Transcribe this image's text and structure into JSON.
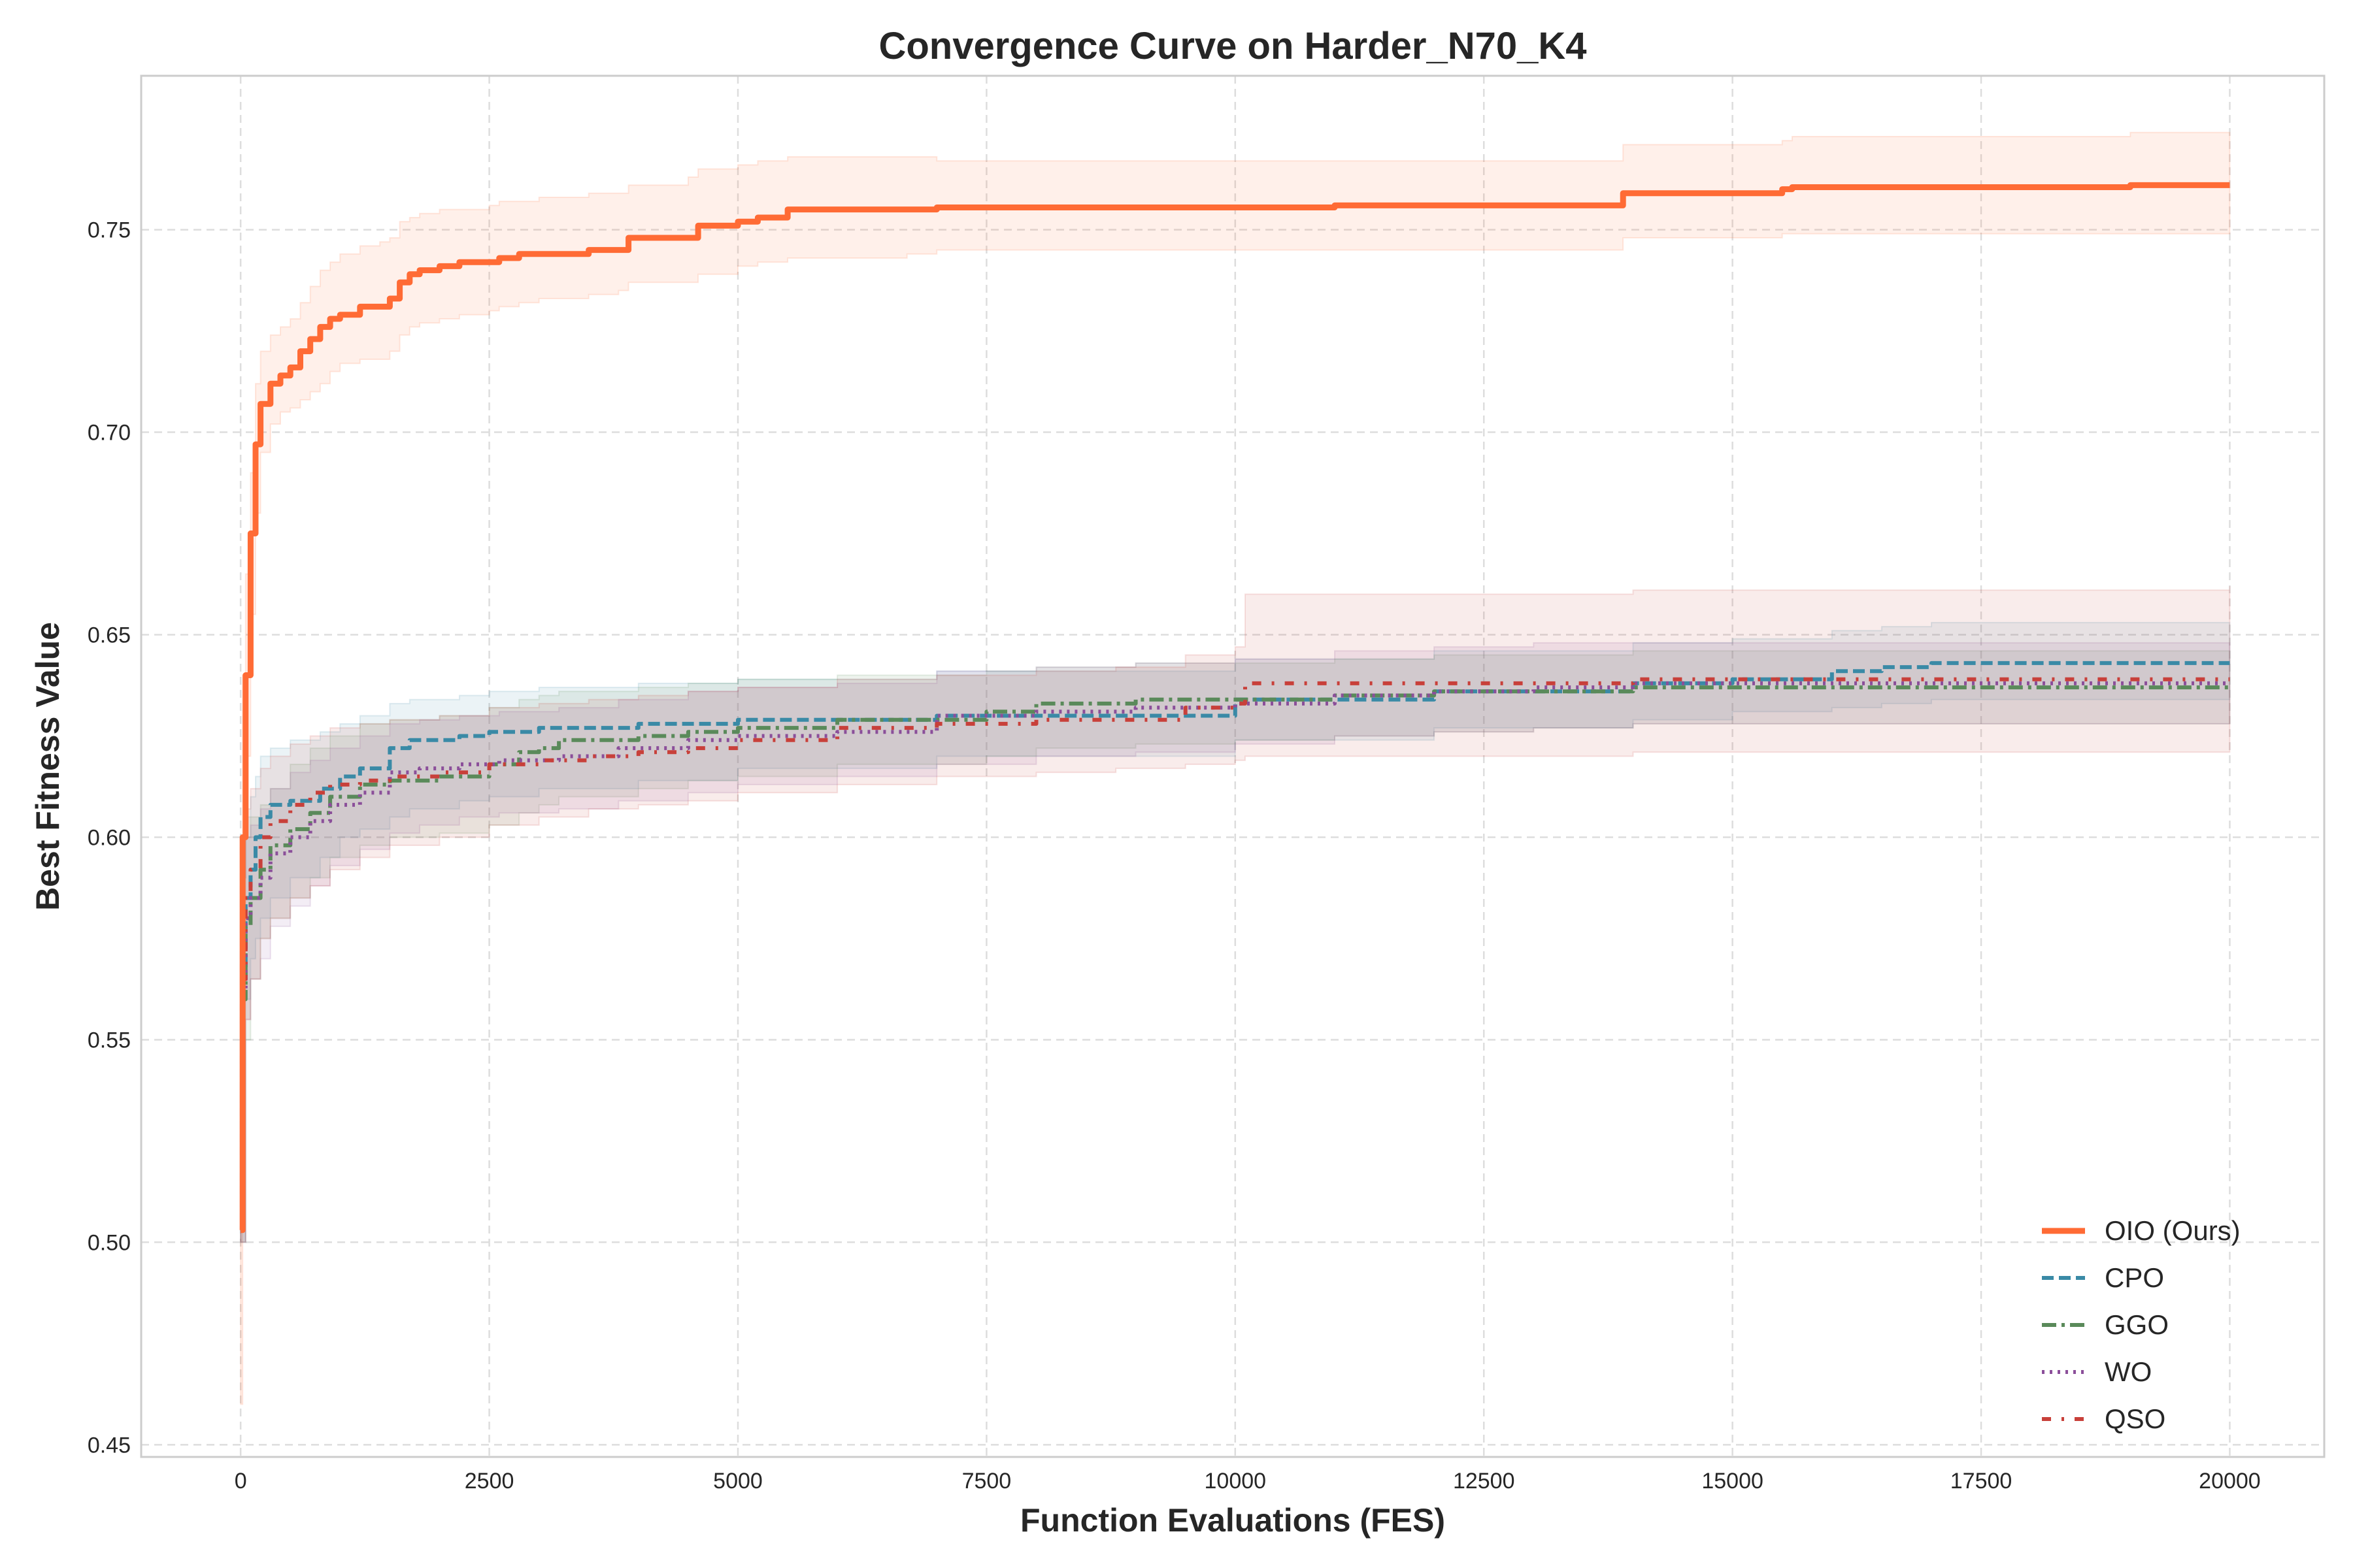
{
  "chart_data": {
    "type": "line",
    "title": "Convergence Curve on Harder_N70_K4",
    "xlabel": "Function Evaluations (FES)",
    "ylabel": "Best Fitness Value",
    "xlim": [
      -1000,
      20950
    ],
    "ylim": [
      0.447,
      0.788
    ],
    "xticks": [
      0,
      2500,
      5000,
      7500,
      10000,
      12500,
      15000,
      17500,
      20000
    ],
    "xtick_labels": [
      "0",
      "2500",
      "5000",
      "7500",
      "10000",
      "12500",
      "15000",
      "17500",
      "20000"
    ],
    "yticks": [
      0.45,
      0.5,
      0.55,
      0.6,
      0.65,
      0.7,
      0.75
    ],
    "ytick_labels": [
      "0.45",
      "0.50",
      "0.55",
      "0.60",
      "0.65",
      "0.70",
      "0.75"
    ],
    "grid": true,
    "legend_position": "lower-right",
    "series": [
      {
        "name": "OIO (Ours)",
        "color": "#ff6b35",
        "style": "solid",
        "x": [
          0,
          20,
          50,
          100,
          150,
          200,
          300,
          400,
          500,
          600,
          700,
          800,
          900,
          1000,
          1200,
          1400,
          1500,
          1600,
          1700,
          1800,
          2000,
          2200,
          2500,
          2600,
          2800,
          3000,
          3500,
          3800,
          3900,
          4500,
          4600,
          5000,
          5200,
          5500,
          6700,
          7000,
          10000,
          11000,
          13500,
          13800,
          13900,
          15500,
          15600,
          19000,
          20000
        ],
        "y": [
          0.503,
          0.6,
          0.64,
          0.675,
          0.697,
          0.707,
          0.712,
          0.714,
          0.716,
          0.72,
          0.723,
          0.726,
          0.728,
          0.729,
          0.731,
          0.731,
          0.733,
          0.737,
          0.739,
          0.74,
          0.741,
          0.742,
          0.742,
          0.743,
          0.744,
          0.744,
          0.745,
          0.745,
          0.748,
          0.748,
          0.751,
          0.752,
          0.753,
          0.755,
          0.755,
          0.7555,
          0.7555,
          0.756,
          0.756,
          0.756,
          0.759,
          0.76,
          0.7605,
          0.761,
          0.761
        ],
        "band_lower": [
          0.46,
          0.56,
          0.62,
          0.655,
          0.68,
          0.695,
          0.702,
          0.705,
          0.706,
          0.708,
          0.71,
          0.712,
          0.715,
          0.717,
          0.718,
          0.718,
          0.72,
          0.724,
          0.726,
          0.727,
          0.728,
          0.729,
          0.73,
          0.731,
          0.732,
          0.733,
          0.734,
          0.735,
          0.737,
          0.737,
          0.739,
          0.741,
          0.742,
          0.743,
          0.744,
          0.745,
          0.745,
          0.745,
          0.745,
          0.745,
          0.748,
          0.749,
          0.749,
          0.749,
          0.749
        ],
        "band_upper": [
          0.55,
          0.64,
          0.665,
          0.69,
          0.712,
          0.72,
          0.724,
          0.726,
          0.728,
          0.732,
          0.736,
          0.74,
          0.742,
          0.744,
          0.746,
          0.747,
          0.748,
          0.752,
          0.753,
          0.754,
          0.755,
          0.755,
          0.756,
          0.757,
          0.757,
          0.758,
          0.759,
          0.759,
          0.761,
          0.763,
          0.765,
          0.766,
          0.767,
          0.768,
          0.768,
          0.767,
          0.767,
          0.767,
          0.767,
          0.767,
          0.771,
          0.772,
          0.773,
          0.774,
          0.774
        ]
      },
      {
        "name": "CPO",
        "color": "#3a8aa6",
        "style": "dashed",
        "x": [
          0,
          50,
          100,
          150,
          200,
          300,
          500,
          800,
          1000,
          1200,
          1500,
          1700,
          2200,
          2500,
          3000,
          4000,
          5000,
          7000,
          10000,
          12000,
          14000,
          15000,
          16000,
          16500,
          17000,
          20000
        ],
        "y": [
          0.565,
          0.585,
          0.592,
          0.6,
          0.605,
          0.608,
          0.609,
          0.612,
          0.615,
          0.617,
          0.622,
          0.624,
          0.625,
          0.626,
          0.627,
          0.628,
          0.629,
          0.63,
          0.634,
          0.636,
          0.638,
          0.639,
          0.641,
          0.642,
          0.643,
          0.643
        ],
        "band_lower": [
          0.5,
          0.56,
          0.57,
          0.575,
          0.58,
          0.585,
          0.59,
          0.595,
          0.6,
          0.602,
          0.605,
          0.607,
          0.609,
          0.61,
          0.612,
          0.614,
          0.617,
          0.62,
          0.624,
          0.627,
          0.629,
          0.631,
          0.632,
          0.633,
          0.634,
          0.634
        ],
        "band_upper": [
          0.6,
          0.605,
          0.61,
          0.615,
          0.62,
          0.622,
          0.624,
          0.626,
          0.628,
          0.63,
          0.633,
          0.634,
          0.635,
          0.636,
          0.637,
          0.638,
          0.639,
          0.641,
          0.644,
          0.646,
          0.648,
          0.649,
          0.651,
          0.652,
          0.653,
          0.653
        ]
      },
      {
        "name": "GGO",
        "color": "#5a8a5a",
        "style": "dashdot",
        "x": [
          0,
          50,
          100,
          200,
          300,
          500,
          700,
          900,
          1200,
          1500,
          2000,
          2500,
          2800,
          3000,
          3200,
          4000,
          4500,
          5000,
          6000,
          7500,
          8000,
          9000,
          10000,
          11000,
          12000,
          13000,
          14000,
          20000
        ],
        "y": [
          0.56,
          0.578,
          0.585,
          0.592,
          0.598,
          0.602,
          0.606,
          0.61,
          0.613,
          0.614,
          0.615,
          0.618,
          0.621,
          0.622,
          0.624,
          0.625,
          0.626,
          0.627,
          0.629,
          0.631,
          0.633,
          0.634,
          0.634,
          0.635,
          0.636,
          0.636,
          0.637,
          0.637
        ],
        "band_lower": [
          0.5,
          0.55,
          0.565,
          0.575,
          0.58,
          0.585,
          0.59,
          0.595,
          0.598,
          0.6,
          0.601,
          0.603,
          0.606,
          0.608,
          0.61,
          0.612,
          0.614,
          0.615,
          0.618,
          0.62,
          0.622,
          0.623,
          0.624,
          0.625,
          0.626,
          0.627,
          0.628,
          0.628
        ],
        "band_upper": [
          0.59,
          0.6,
          0.605,
          0.608,
          0.612,
          0.618,
          0.622,
          0.625,
          0.628,
          0.629,
          0.63,
          0.632,
          0.634,
          0.635,
          0.636,
          0.637,
          0.638,
          0.639,
          0.64,
          0.641,
          0.642,
          0.643,
          0.643,
          0.644,
          0.645,
          0.645,
          0.646,
          0.646
        ]
      },
      {
        "name": "WO",
        "color": "#8b4f9a",
        "style": "dotted",
        "x": [
          0,
          50,
          100,
          200,
          300,
          500,
          700,
          900,
          1200,
          1500,
          1800,
          2200,
          2600,
          3200,
          3800,
          4500,
          5000,
          6000,
          7000,
          8000,
          9000,
          10000,
          11000,
          12000,
          13000,
          14000,
          20000
        ],
        "y": [
          0.562,
          0.58,
          0.585,
          0.59,
          0.596,
          0.6,
          0.604,
          0.608,
          0.611,
          0.616,
          0.617,
          0.618,
          0.619,
          0.62,
          0.622,
          0.624,
          0.625,
          0.626,
          0.63,
          0.631,
          0.632,
          0.633,
          0.635,
          0.636,
          0.637,
          0.638,
          0.638
        ],
        "band_lower": [
          0.5,
          0.555,
          0.565,
          0.57,
          0.578,
          0.583,
          0.588,
          0.593,
          0.597,
          0.601,
          0.603,
          0.605,
          0.606,
          0.607,
          0.609,
          0.611,
          0.613,
          0.615,
          0.618,
          0.62,
          0.621,
          0.623,
          0.625,
          0.626,
          0.627,
          0.628,
          0.628
        ],
        "band_upper": [
          0.59,
          0.6,
          0.603,
          0.607,
          0.612,
          0.616,
          0.619,
          0.622,
          0.625,
          0.628,
          0.629,
          0.63,
          0.631,
          0.632,
          0.634,
          0.636,
          0.637,
          0.638,
          0.641,
          0.642,
          0.643,
          0.644,
          0.646,
          0.647,
          0.648,
          0.648,
          0.648
        ]
      },
      {
        "name": "QSO",
        "color": "#c8403a",
        "style": "dashdotdot",
        "x": [
          0,
          50,
          100,
          200,
          300,
          500,
          700,
          900,
          1200,
          1500,
          2000,
          2500,
          3000,
          3500,
          4000,
          4500,
          5000,
          6000,
          7000,
          8000,
          8800,
          9500,
          10000,
          10100,
          12000,
          14000,
          16000,
          20000
        ],
        "y": [
          0.565,
          0.585,
          0.592,
          0.6,
          0.604,
          0.608,
          0.611,
          0.613,
          0.614,
          0.615,
          0.616,
          0.618,
          0.619,
          0.62,
          0.621,
          0.622,
          0.624,
          0.627,
          0.628,
          0.629,
          0.629,
          0.632,
          0.633,
          0.638,
          0.638,
          0.639,
          0.639,
          0.639
        ],
        "band_lower": [
          0.5,
          0.555,
          0.565,
          0.575,
          0.58,
          0.585,
          0.588,
          0.592,
          0.595,
          0.598,
          0.6,
          0.603,
          0.605,
          0.607,
          0.608,
          0.609,
          0.611,
          0.613,
          0.615,
          0.616,
          0.617,
          0.618,
          0.619,
          0.62,
          0.62,
          0.621,
          0.621,
          0.621
        ],
        "band_upper": [
          0.6,
          0.607,
          0.612,
          0.617,
          0.62,
          0.623,
          0.625,
          0.627,
          0.628,
          0.629,
          0.63,
          0.632,
          0.633,
          0.634,
          0.635,
          0.636,
          0.637,
          0.639,
          0.64,
          0.641,
          0.642,
          0.645,
          0.647,
          0.66,
          0.66,
          0.661,
          0.661,
          0.662
        ]
      }
    ]
  }
}
